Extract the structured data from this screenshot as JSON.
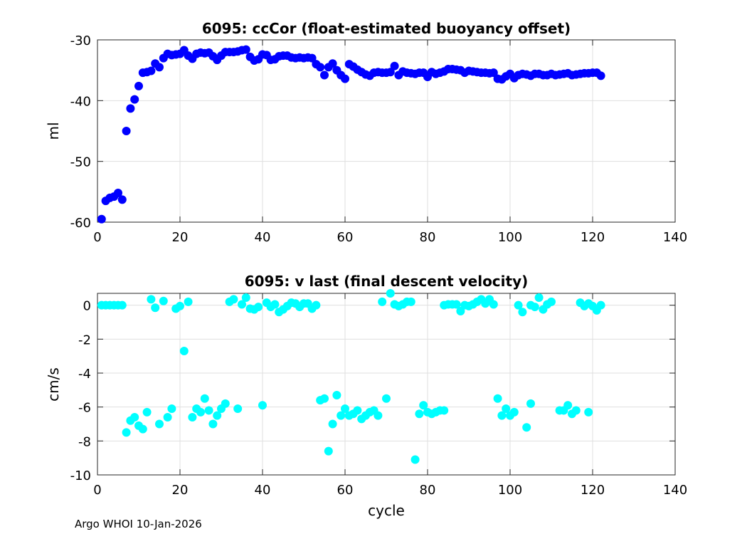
{
  "footer_text": "Argo WHOI 10-Jan-2026",
  "chart_data": [
    {
      "type": "scatter",
      "title": "6095: ccCor (float-estimated buoyancy offset)",
      "xlabel": "",
      "ylabel": "ml",
      "xlim": [
        0,
        140
      ],
      "ylim": [
        -60,
        -30
      ],
      "xticks": [
        0,
        20,
        40,
        60,
        80,
        100,
        120,
        140
      ],
      "yticks": [
        -60,
        -50,
        -40,
        -30
      ],
      "grid": true,
      "marker_color": "#0000ff",
      "series": [
        {
          "name": "ccCor",
          "x": [
            1,
            2,
            3,
            4,
            5,
            6,
            7,
            8,
            9,
            10,
            11,
            12,
            13,
            14,
            15,
            16,
            17,
            18,
            19,
            20,
            21,
            22,
            23,
            24,
            25,
            26,
            27,
            28,
            29,
            30,
            31,
            32,
            33,
            34,
            35,
            36,
            37,
            38,
            39,
            40,
            41,
            42,
            43,
            44,
            45,
            46,
            47,
            48,
            49,
            50,
            51,
            52,
            53,
            54,
            55,
            56,
            57,
            58,
            59,
            60,
            61,
            62,
            63,
            64,
            65,
            66,
            67,
            68,
            69,
            70,
            71,
            72,
            73,
            74,
            75,
            76,
            77,
            78,
            79,
            80,
            81,
            82,
            83,
            84,
            85,
            86,
            87,
            88,
            89,
            90,
            91,
            92,
            93,
            94,
            95,
            96,
            97,
            98,
            99,
            100,
            101,
            102,
            103,
            104,
            105,
            106,
            107,
            108,
            109,
            110,
            111,
            112,
            113,
            114,
            115,
            116,
            117,
            118,
            119,
            120,
            121,
            122
          ],
          "y": [
            -59.5,
            -56.5,
            -56.0,
            -55.8,
            -55.2,
            -56.3,
            -45.0,
            -41.3,
            -39.8,
            -37.6,
            -35.4,
            -35.3,
            -35.1,
            -33.9,
            -34.5,
            -33.0,
            -32.3,
            -32.5,
            -32.4,
            -32.3,
            -31.7,
            -32.6,
            -33.1,
            -32.3,
            -32.1,
            -32.2,
            -32.1,
            -32.7,
            -33.3,
            -32.6,
            -32.0,
            -32.0,
            -32.0,
            -31.9,
            -31.7,
            -31.6,
            -32.8,
            -33.4,
            -33.2,
            -32.4,
            -32.5,
            -33.3,
            -33.2,
            -32.7,
            -32.6,
            -32.6,
            -32.9,
            -33.0,
            -32.9,
            -33.0,
            -32.9,
            -33.0,
            -34.0,
            -34.5,
            -35.8,
            -34.5,
            -33.9,
            -35.0,
            -35.8,
            -36.4,
            -34.0,
            -34.4,
            -34.9,
            -35.3,
            -35.7,
            -35.9,
            -35.4,
            -35.3,
            -35.4,
            -35.4,
            -35.3,
            -34.3,
            -35.8,
            -35.2,
            -35.4,
            -35.5,
            -35.6,
            -35.4,
            -35.4,
            -36.1,
            -35.3,
            -35.6,
            -35.4,
            -35.2,
            -34.8,
            -34.8,
            -34.9,
            -35.0,
            -35.4,
            -35.1,
            -35.2,
            -35.3,
            -35.4,
            -35.4,
            -35.5,
            -35.4,
            -36.4,
            -36.5,
            -36.0,
            -35.6,
            -36.3,
            -35.8,
            -35.6,
            -35.7,
            -35.9,
            -35.6,
            -35.6,
            -35.8,
            -35.8,
            -35.6,
            -35.8,
            -35.7,
            -35.6,
            -35.5,
            -35.8,
            -35.7,
            -35.6,
            -35.5,
            -35.5,
            -35.4,
            -35.4,
            -35.9
          ]
        }
      ]
    },
    {
      "type": "scatter",
      "title": "6095: v last (final descent velocity)",
      "xlabel": "cycle",
      "ylabel": "cm/s",
      "xlim": [
        0,
        140
      ],
      "ylim": [
        -10,
        0.7
      ],
      "xticks": [
        0,
        20,
        40,
        60,
        80,
        100,
        120,
        140
      ],
      "yticks": [
        -10,
        -8,
        -6,
        -4,
        -2,
        0
      ],
      "grid": true,
      "marker_color": "#00ffff",
      "series": [
        {
          "name": "vlast_near_zero",
          "x": [
            1,
            2,
            3,
            4,
            5,
            6,
            13,
            14,
            16,
            19,
            20,
            22,
            32,
            33,
            35,
            36,
            37,
            38,
            39,
            41,
            42,
            43,
            44,
            45,
            46,
            47,
            48,
            49,
            50,
            51,
            52,
            53,
            69,
            71,
            72,
            73,
            74,
            75,
            76,
            84,
            85,
            86,
            87,
            88,
            89,
            90,
            91,
            92,
            93,
            94,
            95,
            96,
            102,
            103,
            105,
            106,
            107,
            108,
            109,
            110,
            117,
            118,
            119,
            120,
            121,
            122
          ],
          "y": [
            0.0,
            0.0,
            0.0,
            0.0,
            0.0,
            0.0,
            0.35,
            -0.15,
            0.25,
            -0.2,
            -0.05,
            0.2,
            0.2,
            0.35,
            0.05,
            0.45,
            -0.2,
            -0.25,
            -0.1,
            0.15,
            -0.1,
            0.05,
            -0.4,
            -0.25,
            -0.05,
            0.15,
            0.1,
            -0.1,
            0.1,
            0.1,
            -0.2,
            0.0,
            0.2,
            0.7,
            0.05,
            -0.05,
            0.05,
            0.2,
            0.2,
            0.0,
            0.05,
            0.05,
            0.05,
            -0.35,
            0.0,
            -0.05,
            0.05,
            0.2,
            0.35,
            0.1,
            0.35,
            0.05,
            0.0,
            -0.4,
            0.0,
            -0.1,
            0.45,
            -0.25,
            0.05,
            0.2,
            0.15,
            -0.05,
            0.1,
            -0.05,
            -0.3,
            0.0
          ]
        },
        {
          "name": "vlast_descent",
          "x": [
            7,
            8,
            9,
            10,
            11,
            12,
            15,
            17,
            18,
            21,
            23,
            24,
            25,
            26,
            27,
            28,
            29,
            30,
            31,
            34,
            40,
            54,
            55,
            56,
            57,
            58,
            59,
            60,
            61,
            62,
            63,
            64,
            65,
            66,
            67,
            68,
            70,
            77,
            78,
            79,
            80,
            81,
            82,
            83,
            84,
            97,
            98,
            99,
            100,
            101,
            104,
            105,
            112,
            113,
            114,
            115,
            116,
            119
          ],
          "y": [
            -7.5,
            -6.8,
            -6.6,
            -7.1,
            -7.3,
            -6.3,
            -7.0,
            -6.6,
            -6.1,
            -2.7,
            -6.6,
            -6.1,
            -6.3,
            -5.5,
            -6.2,
            -7.0,
            -6.5,
            -6.1,
            -5.8,
            -6.1,
            -5.9,
            -5.6,
            -5.5,
            -8.6,
            -7.0,
            -5.3,
            -6.5,
            -6.1,
            -6.5,
            -6.4,
            -6.2,
            -6.7,
            -6.5,
            -6.3,
            -6.2,
            -6.5,
            -5.5,
            -9.1,
            -6.4,
            -5.9,
            -6.3,
            -6.4,
            -6.3,
            -6.2,
            -6.2,
            -5.5,
            -6.5,
            -6.1,
            -6.5,
            -6.3,
            -7.2,
            -5.8,
            -6.2,
            -6.2,
            -5.9,
            -6.4,
            -6.2,
            -6.3
          ]
        }
      ]
    }
  ]
}
